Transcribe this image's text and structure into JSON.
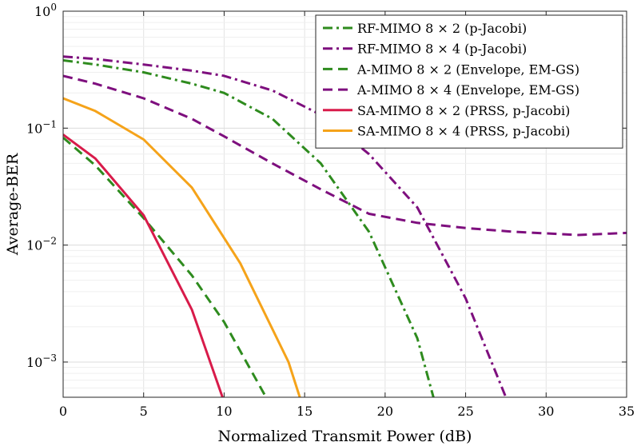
{
  "chart_data": {
    "type": "line",
    "title": "",
    "xlabel": "Normalized Transmit Power (dB)",
    "ylabel": "Average-BER",
    "xlim": [
      0,
      35
    ],
    "ylim": [
      0.0005,
      1
    ],
    "yscale": "log",
    "grid": true,
    "legend_position": "top-right",
    "x_ticks": [
      0,
      5,
      10,
      15,
      20,
      25,
      30,
      35
    ],
    "x_tick_labels": [
      "0",
      "5",
      "10",
      "15",
      "20",
      "25",
      "30",
      "35"
    ],
    "y_ticks": [
      0.001,
      0.01,
      0.1,
      1
    ],
    "y_tick_labels": [
      {
        "base": "10",
        "exp": "−3"
      },
      {
        "base": "10",
        "exp": "−2"
      },
      {
        "base": "10",
        "exp": "−1"
      },
      {
        "base": "10",
        "exp": "0"
      }
    ],
    "series": [
      {
        "name": "RF-MIMO 8 × 2 (p-Jacobi)",
        "color": "#2e8b1e",
        "dash": "dashdot",
        "x": [
          0,
          2,
          5,
          8,
          10,
          13,
          16,
          19,
          22,
          23
        ],
        "y": [
          0.38,
          0.35,
          0.3,
          0.24,
          0.2,
          0.12,
          0.05,
          0.013,
          0.0016,
          0.0005
        ]
      },
      {
        "name": "RF-MIMO 8 × 4 (p-Jacobi)",
        "color": "#7e0f7e",
        "dash": "dashdot",
        "x": [
          0,
          2,
          5,
          8,
          10,
          13,
          16,
          19,
          22,
          25,
          27.5
        ],
        "y": [
          0.41,
          0.39,
          0.35,
          0.31,
          0.28,
          0.21,
          0.13,
          0.06,
          0.021,
          0.0035,
          0.0005
        ]
      },
      {
        "name": "A-MIMO 8 × 2 (Envelope, EM-GS)",
        "color": "#2e8b1e",
        "dash": "dashed",
        "x": [
          0,
          2,
          5,
          8,
          10,
          12.6
        ],
        "y": [
          0.083,
          0.048,
          0.017,
          0.0055,
          0.0022,
          0.0005
        ]
      },
      {
        "name": "A-MIMO 8 × 4 (Envelope, EM-GS)",
        "color": "#7e0f7e",
        "dash": "dashed",
        "x": [
          0,
          2,
          5,
          8,
          10,
          13,
          16,
          19,
          22,
          25,
          28,
          32,
          35
        ],
        "y": [
          0.28,
          0.24,
          0.18,
          0.12,
          0.085,
          0.05,
          0.03,
          0.0185,
          0.0155,
          0.014,
          0.013,
          0.0122,
          0.0127
        ]
      },
      {
        "name": "SA-MIMO 8 × 2 (PRSS, p-Jacobi)",
        "color": "#d81b4a",
        "dash": "solid",
        "x": [
          0,
          2,
          5,
          8,
          9.9
        ],
        "y": [
          0.088,
          0.055,
          0.018,
          0.0028,
          0.0005
        ]
      },
      {
        "name": "SA-MIMO 8 × 4 (PRSS, p-Jacobi)",
        "color": "#f5a31a",
        "dash": "solid",
        "x": [
          0,
          2,
          5,
          8,
          11,
          14,
          14.7
        ],
        "y": [
          0.18,
          0.14,
          0.08,
          0.031,
          0.007,
          0.001,
          0.0005
        ]
      }
    ]
  }
}
